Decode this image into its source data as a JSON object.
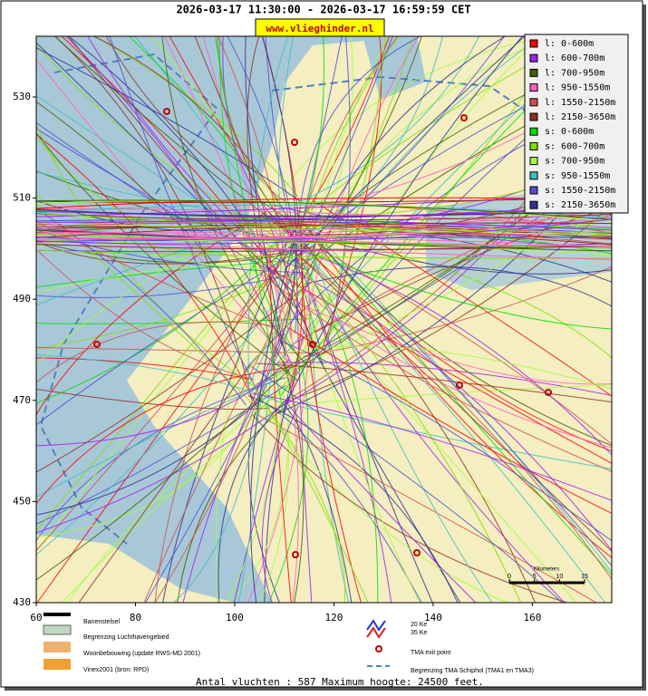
{
  "header": {
    "title": "2026-03-17 11:30:00 - 2026-03-17 16:59:59 CET",
    "url": "www.vlieghinder.nl"
  },
  "map": {
    "xlim": [
      60,
      176
    ],
    "ylim": [
      430,
      542
    ],
    "xticks": [
      60,
      80,
      100,
      120,
      140,
      160
    ],
    "yticks": [
      430,
      450,
      470,
      490,
      510,
      530
    ]
  },
  "legend": [
    {
      "label": "l: 0-600m",
      "color": "#ff0000"
    },
    {
      "label": "l: 600-700m",
      "color": "#a020f0"
    },
    {
      "label": "l: 700-950m",
      "color": "#406000"
    },
    {
      "label": "l: 950-1550m",
      "color": "#ff60c0"
    },
    {
      "label": "l: 1550-2150m",
      "color": "#d05050"
    },
    {
      "label": "l: 2150-3650m",
      "color": "#903020"
    },
    {
      "label": "s: 0-600m",
      "color": "#00e000"
    },
    {
      "label": "s: 600-700m",
      "color": "#80e000"
    },
    {
      "label": "s: 700-950m",
      "color": "#a0ff40"
    },
    {
      "label": "s: 950-1550m",
      "color": "#40c0c0"
    },
    {
      "label": "s: 1550-2150m",
      "color": "#5050d0"
    },
    {
      "label": "s: 2150-3650m",
      "color": "#303090"
    }
  ],
  "scale": {
    "title": "Kilometers",
    "ticks": [
      0,
      5,
      10,
      15
    ]
  },
  "bottom_legend": {
    "runways": "Banenstelsel",
    "airport_boundary": "Begrenzing Luchthavengebied",
    "housing": "Woonbebouwing (update RWS-MD 2001)",
    "vinex": "Vinex2001 (bron: RPD)",
    "ke20": "20 Ke",
    "ke35": "35 Ke",
    "tma_exit": "TMA exit point",
    "tma_boundary": "Begrenzing TMA Schiphol  (TMA1 en TMA3)"
  },
  "footer": "Antal vluchten : 587 Maximum hoogte: 24500 feet."
}
